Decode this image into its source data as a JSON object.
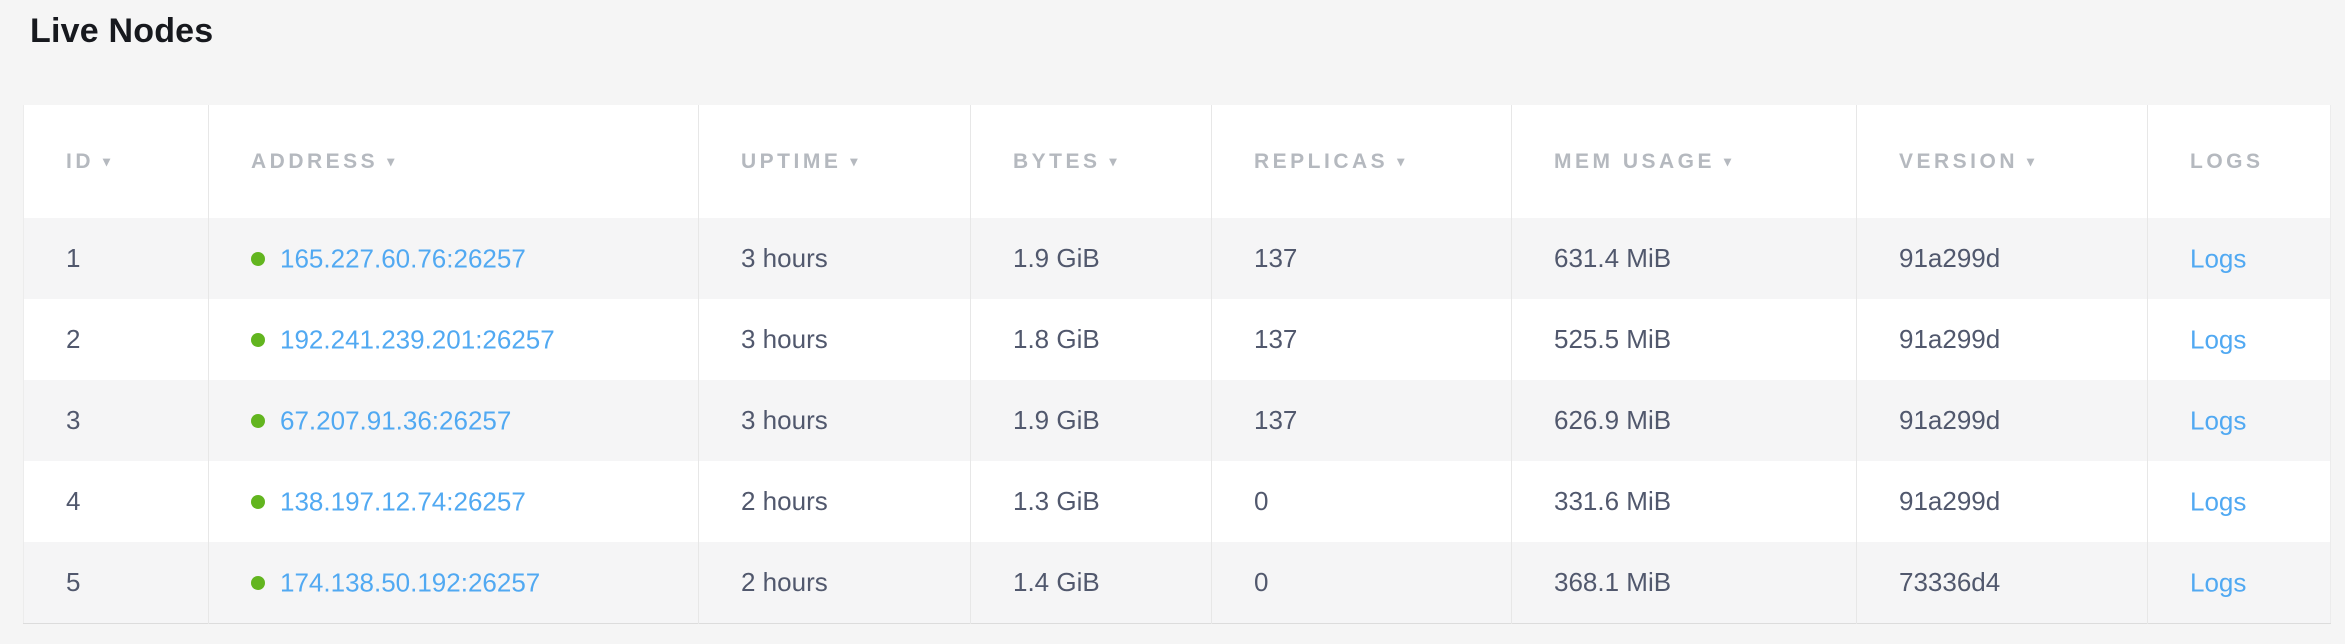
{
  "page": {
    "title": "Live Nodes"
  },
  "colors": {
    "page_bg": "#f5f5f5",
    "row_alt_bg": "#f5f5f6",
    "header_text": "#b5b9bf",
    "body_text": "#51586d",
    "link_blue": "#51a9f2",
    "status_green": "#62b51f",
    "column_border": "#e7e7e7"
  },
  "icons": {
    "sort_arrow": "▾",
    "status_dot": "green-circle"
  },
  "table": {
    "columns": [
      {
        "label": "ID",
        "sort_indicator": "▾"
      },
      {
        "label": "ADDRESS",
        "sort_indicator": "▾"
      },
      {
        "label": "UPTIME",
        "sort_indicator": "▾"
      },
      {
        "label": "BYTES",
        "sort_indicator": "▾"
      },
      {
        "label": "REPLICAS",
        "sort_indicator": "▾"
      },
      {
        "label": "MEM USAGE",
        "sort_indicator": "▾"
      },
      {
        "label": "VERSION",
        "sort_indicator": "▾"
      },
      {
        "label": "LOGS",
        "sort_indicator": ""
      }
    ],
    "rows": [
      {
        "id": "1",
        "address": "165.227.60.76:26257",
        "uptime": "3 hours",
        "bytes": "1.9 GiB",
        "replicas": "137",
        "mem_usage": "631.4 MiB",
        "version": "91a299d",
        "logs_label": "Logs"
      },
      {
        "id": "2",
        "address": "192.241.239.201:26257",
        "uptime": "3 hours",
        "bytes": "1.8 GiB",
        "replicas": "137",
        "mem_usage": "525.5 MiB",
        "version": "91a299d",
        "logs_label": "Logs"
      },
      {
        "id": "3",
        "address": "67.207.91.36:26257",
        "uptime": "3 hours",
        "bytes": "1.9 GiB",
        "replicas": "137",
        "mem_usage": "626.9 MiB",
        "version": "91a299d",
        "logs_label": "Logs"
      },
      {
        "id": "4",
        "address": "138.197.12.74:26257",
        "uptime": "2 hours",
        "bytes": "1.3 GiB",
        "replicas": "0",
        "mem_usage": "331.6 MiB",
        "version": "91a299d",
        "logs_label": "Logs"
      },
      {
        "id": "5",
        "address": "174.138.50.192:26257",
        "uptime": "2 hours",
        "bytes": "1.4 GiB",
        "replicas": "0",
        "mem_usage": "368.1 MiB",
        "version": "73336d4",
        "logs_label": "Logs"
      }
    ]
  }
}
